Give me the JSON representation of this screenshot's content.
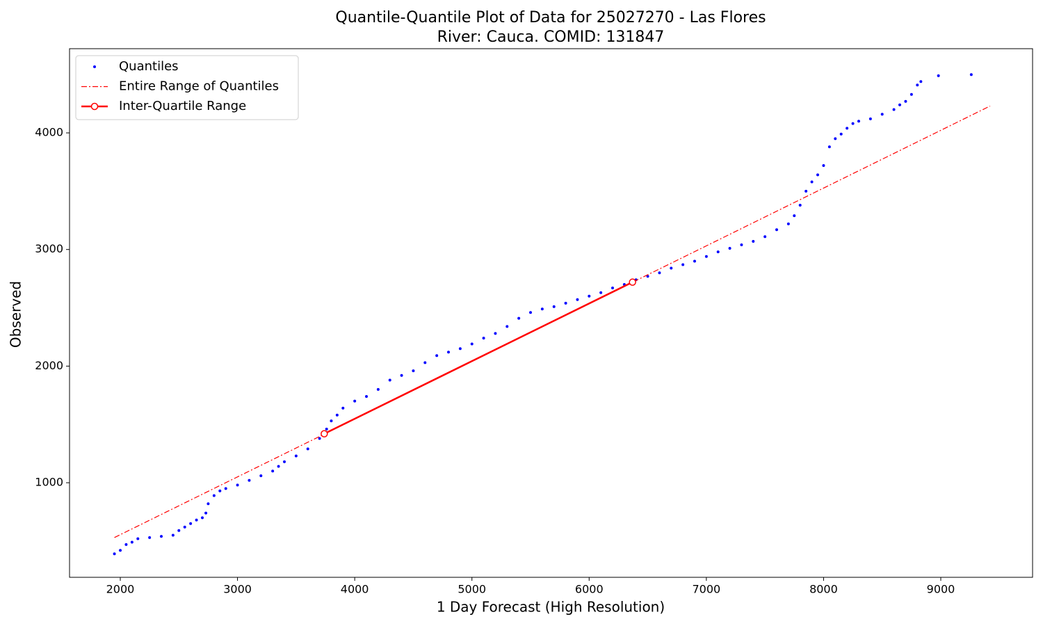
{
  "chart_data": {
    "type": "scatter",
    "title": "Quantile-Quantile Plot of Data for 25027270 - Las Flores",
    "subtitle": "River: Cauca. COMID: 131847",
    "xlabel": "1 Day Forecast (High Resolution)",
    "ylabel": "Observed",
    "xlim": [
      1567,
      9783
    ],
    "ylim": [
      189,
      4722
    ],
    "xticks": [
      2000,
      3000,
      4000,
      5000,
      6000,
      7000,
      8000,
      9000
    ],
    "yticks": [
      1000,
      2000,
      3000,
      4000
    ],
    "grid": false,
    "legend": "upper left",
    "series": [
      {
        "name": "Quantiles",
        "color": "#0000ff",
        "marker": "point",
        "linestyle": "none",
        "x": [
          1950,
          2000,
          2050,
          2100,
          2150,
          2250,
          2350,
          2450,
          2500,
          2550,
          2600,
          2650,
          2700,
          2730,
          2750,
          2800,
          2850,
          2900,
          3000,
          3100,
          3200,
          3300,
          3350,
          3400,
          3500,
          3600,
          3700,
          3760,
          3800,
          3850,
          3900,
          4000,
          4100,
          4200,
          4300,
          4400,
          4500,
          4600,
          4700,
          4800,
          4900,
          5000,
          5100,
          5200,
          5300,
          5400,
          5500,
          5600,
          5700,
          5800,
          5900,
          6000,
          6100,
          6200,
          6300,
          6400,
          6500,
          6600,
          6700,
          6800,
          6900,
          7000,
          7100,
          7200,
          7300,
          7400,
          7500,
          7600,
          7700,
          7750,
          7800,
          7850,
          7900,
          7950,
          8000,
          8050,
          8100,
          8150,
          8200,
          8250,
          8300,
          8400,
          8500,
          8600,
          8650,
          8700,
          8750,
          8800,
          8830,
          8980,
          9260
        ],
        "values": [
          390,
          420,
          470,
          490,
          520,
          530,
          540,
          550,
          590,
          620,
          650,
          680,
          700,
          740,
          820,
          890,
          930,
          950,
          980,
          1020,
          1060,
          1100,
          1140,
          1180,
          1230,
          1290,
          1380,
          1460,
          1530,
          1580,
          1640,
          1700,
          1740,
          1800,
          1880,
          1920,
          1960,
          2030,
          2090,
          2120,
          2150,
          2190,
          2240,
          2280,
          2340,
          2410,
          2460,
          2490,
          2510,
          2540,
          2570,
          2600,
          2630,
          2670,
          2700,
          2740,
          2770,
          2800,
          2840,
          2870,
          2900,
          2940,
          2980,
          3010,
          3040,
          3070,
          3110,
          3170,
          3220,
          3290,
          3380,
          3500,
          3580,
          3640,
          3720,
          3880,
          3950,
          3990,
          4040,
          4080,
          4100,
          4120,
          4160,
          4200,
          4240,
          4270,
          4330,
          4410,
          4440,
          4490,
          4500
        ]
      },
      {
        "name": "Entire Range of Quantiles",
        "color": "#ff0000",
        "marker": "none",
        "linestyle": "dashdot",
        "x": [
          1950,
          9420
        ],
        "values": [
          530,
          4230
        ]
      },
      {
        "name": "Inter-Quartile Range",
        "color": "#ff0000",
        "marker": "circle",
        "linestyle": "solid",
        "x": [
          3740,
          6370
        ],
        "values": [
          1420,
          2720
        ]
      }
    ]
  }
}
